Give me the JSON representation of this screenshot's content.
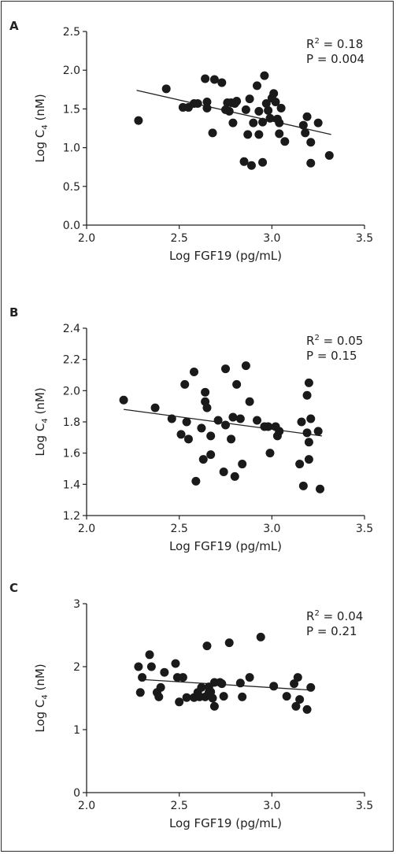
{
  "chart_data": [
    {
      "type": "scatter",
      "panel_label": "A",
      "xlabel": "Log FGF19 (pg/mL)",
      "ylabel": "Log C",
      "ylabel_sub": "4",
      "ylabel_unit": " (nM)",
      "xlim": [
        2.0,
        3.5
      ],
      "ylim": [
        0.0,
        2.5
      ],
      "x_ticks": [
        2.0,
        2.5,
        3.0,
        3.5
      ],
      "y_ticks": [
        0.0,
        0.5,
        1.0,
        1.5,
        2.0,
        2.5
      ],
      "x_tick_labels": [
        "2.0",
        "2.5",
        "3.0",
        "3.5"
      ],
      "y_tick_labels": [
        "0.0",
        "0.5",
        "1.0",
        "1.5",
        "2.0",
        "2.5"
      ],
      "stat_r2_label": "R",
      "stat_r2_sup": "2",
      "stat_r2_value": " = 0.18",
      "stat_p": "P = 0.004",
      "regression": {
        "x": [
          2.27,
          3.32
        ],
        "y": [
          1.74,
          1.17
        ]
      },
      "points": [
        [
          2.28,
          1.35
        ],
        [
          2.43,
          1.76
        ],
        [
          2.52,
          1.52
        ],
        [
          2.55,
          1.52
        ],
        [
          2.58,
          1.57
        ],
        [
          2.6,
          1.57
        ],
        [
          2.64,
          1.89
        ],
        [
          2.65,
          1.59
        ],
        [
          2.65,
          1.51
        ],
        [
          2.68,
          1.19
        ],
        [
          2.69,
          1.88
        ],
        [
          2.73,
          1.84
        ],
        [
          2.75,
          1.49
        ],
        [
          2.76,
          1.58
        ],
        [
          2.77,
          1.47
        ],
        [
          2.78,
          1.58
        ],
        [
          2.79,
          1.32
        ],
        [
          2.8,
          1.57
        ],
        [
          2.81,
          1.6
        ],
        [
          2.85,
          0.82
        ],
        [
          2.86,
          1.49
        ],
        [
          2.87,
          1.17
        ],
        [
          2.88,
          1.63
        ],
        [
          2.89,
          0.77
        ],
        [
          2.9,
          1.32
        ],
        [
          2.92,
          1.8
        ],
        [
          2.93,
          1.47
        ],
        [
          2.93,
          1.17
        ],
        [
          2.95,
          1.33
        ],
        [
          2.95,
          0.81
        ],
        [
          2.96,
          1.93
        ],
        [
          2.97,
          1.57
        ],
        [
          2.98,
          1.48
        ],
        [
          2.99,
          1.38
        ],
        [
          3.0,
          1.64
        ],
        [
          3.01,
          1.7
        ],
        [
          3.02,
          1.59
        ],
        [
          3.03,
          1.37
        ],
        [
          3.04,
          1.32
        ],
        [
          3.04,
          1.18
        ],
        [
          3.05,
          1.51
        ],
        [
          3.07,
          1.08
        ],
        [
          3.17,
          1.29
        ],
        [
          3.18,
          1.19
        ],
        [
          3.19,
          1.4
        ],
        [
          3.21,
          1.07
        ],
        [
          3.21,
          0.8
        ],
        [
          3.25,
          1.32
        ],
        [
          3.31,
          0.9
        ]
      ]
    },
    {
      "type": "scatter",
      "panel_label": "B",
      "xlabel": "Log FGF19 (pg/mL)",
      "ylabel": "Log C",
      "ylabel_sub": "4",
      "ylabel_unit": " (nM)",
      "xlim": [
        2.0,
        3.5
      ],
      "ylim": [
        1.2,
        2.4
      ],
      "x_ticks": [
        2.0,
        2.5,
        3.0,
        3.5
      ],
      "y_ticks": [
        1.2,
        1.4,
        1.6,
        1.8,
        2.0,
        2.2,
        2.4
      ],
      "x_tick_labels": [
        "2.0",
        "2.5",
        "3.0",
        "3.5"
      ],
      "y_tick_labels": [
        "1.2",
        "1.4",
        "1.6",
        "1.8",
        "2.0",
        "2.2",
        "2.4"
      ],
      "stat_r2_label": "R",
      "stat_r2_sup": "2",
      "stat_r2_value": " = 0.05",
      "stat_p": "P = 0.15",
      "regression": {
        "x": [
          2.2,
          3.27
        ],
        "y": [
          1.88,
          1.71
        ]
      },
      "points": [
        [
          2.2,
          1.94
        ],
        [
          2.37,
          1.89
        ],
        [
          2.46,
          1.82
        ],
        [
          2.51,
          1.72
        ],
        [
          2.53,
          2.04
        ],
        [
          2.54,
          1.8
        ],
        [
          2.55,
          1.69
        ],
        [
          2.58,
          2.12
        ],
        [
          2.59,
          1.42
        ],
        [
          2.62,
          1.76
        ],
        [
          2.63,
          1.56
        ],
        [
          2.64,
          1.99
        ],
        [
          2.64,
          1.93
        ],
        [
          2.65,
          1.89
        ],
        [
          2.67,
          1.59
        ],
        [
          2.67,
          1.71
        ],
        [
          2.71,
          1.81
        ],
        [
          2.74,
          1.48
        ],
        [
          2.75,
          2.14
        ],
        [
          2.75,
          1.78
        ],
        [
          2.78,
          1.69
        ],
        [
          2.79,
          1.83
        ],
        [
          2.8,
          1.45
        ],
        [
          2.81,
          2.04
        ],
        [
          2.83,
          1.82
        ],
        [
          2.84,
          1.53
        ],
        [
          2.86,
          2.16
        ],
        [
          2.88,
          1.93
        ],
        [
          2.92,
          1.81
        ],
        [
          2.96,
          1.77
        ],
        [
          2.98,
          1.77
        ],
        [
          2.99,
          1.6
        ],
        [
          3.02,
          1.77
        ],
        [
          3.03,
          1.71
        ],
        [
          3.04,
          1.74
        ],
        [
          3.15,
          1.53
        ],
        [
          3.16,
          1.8
        ],
        [
          3.17,
          1.39
        ],
        [
          3.19,
          1.97
        ],
        [
          3.2,
          2.05
        ],
        [
          3.19,
          1.73
        ],
        [
          3.2,
          1.67
        ],
        [
          3.2,
          1.56
        ],
        [
          3.21,
          1.82
        ],
        [
          3.25,
          1.74
        ],
        [
          3.26,
          1.37
        ]
      ]
    },
    {
      "type": "scatter",
      "panel_label": "C",
      "xlabel": "Log FGF19 (pg/mL)",
      "ylabel": "Log C",
      "ylabel_sub": "4",
      "ylabel_unit": " (nM)",
      "xlim": [
        2.0,
        3.5
      ],
      "ylim": [
        0,
        3
      ],
      "x_ticks": [
        2.0,
        2.5,
        3.0,
        3.5
      ],
      "y_ticks": [
        0,
        1,
        2,
        3
      ],
      "x_tick_labels": [
        "2.0",
        "2.5",
        "3.0",
        "3.5"
      ],
      "y_tick_labels": [
        "0",
        "1",
        "2",
        "3"
      ],
      "stat_r2_label": "R",
      "stat_r2_sup": "2",
      "stat_r2_value": " = 0.04",
      "stat_p": "P = 0.21",
      "regression": {
        "x": [
          2.28,
          3.2
        ],
        "y": [
          1.8,
          1.63
        ]
      },
      "points": [
        [
          2.28,
          2.0
        ],
        [
          2.29,
          1.59
        ],
        [
          2.3,
          1.83
        ],
        [
          2.34,
          2.19
        ],
        [
          2.35,
          2.0
        ],
        [
          2.38,
          1.59
        ],
        [
          2.39,
          1.52
        ],
        [
          2.4,
          1.67
        ],
        [
          2.42,
          1.91
        ],
        [
          2.48,
          2.05
        ],
        [
          2.49,
          1.83
        ],
        [
          2.5,
          1.44
        ],
        [
          2.52,
          1.83
        ],
        [
          2.54,
          1.51
        ],
        [
          2.58,
          1.51
        ],
        [
          2.6,
          1.59
        ],
        [
          2.61,
          1.52
        ],
        [
          2.62,
          1.67
        ],
        [
          2.64,
          1.52
        ],
        [
          2.65,
          2.33
        ],
        [
          2.66,
          1.59
        ],
        [
          2.66,
          1.68
        ],
        [
          2.67,
          1.6
        ],
        [
          2.68,
          1.5
        ],
        [
          2.69,
          1.75
        ],
        [
          2.69,
          1.37
        ],
        [
          2.72,
          1.75
        ],
        [
          2.73,
          1.73
        ],
        [
          2.74,
          1.53
        ],
        [
          2.77,
          2.38
        ],
        [
          2.83,
          1.74
        ],
        [
          2.84,
          1.52
        ],
        [
          2.88,
          1.83
        ],
        [
          2.94,
          2.47
        ],
        [
          3.01,
          1.69
        ],
        [
          3.08,
          1.53
        ],
        [
          3.12,
          1.73
        ],
        [
          3.13,
          1.37
        ],
        [
          3.14,
          1.83
        ],
        [
          3.15,
          1.48
        ],
        [
          3.19,
          1.32
        ],
        [
          3.21,
          1.67
        ]
      ]
    }
  ]
}
